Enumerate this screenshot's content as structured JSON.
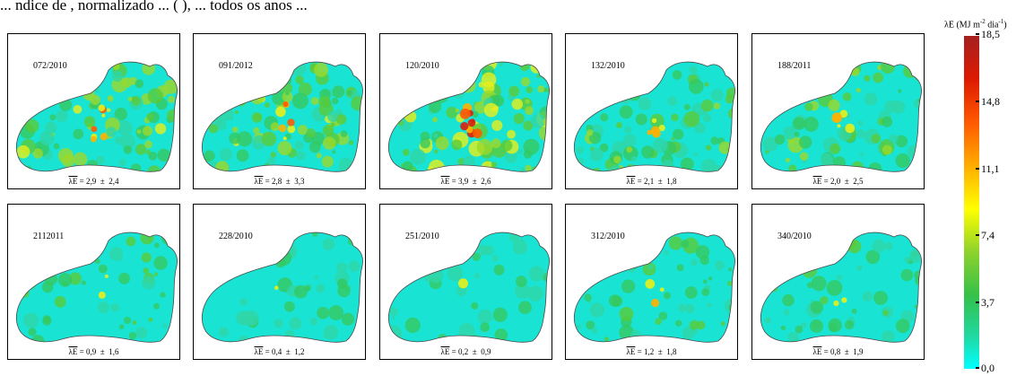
{
  "caption_fragment": "... ndice de  , normalizado ... (  ), ... todos os anos ...",
  "legend": {
    "title_main": "λE (MJ m",
    "sup1": "-2",
    "title_mid": " dia",
    "sup2": "-1",
    "title_end": ")",
    "ticks": [
      "18,5",
      "14,8",
      "11,1",
      "7,4",
      "3,7",
      "0,0"
    ],
    "color_top": "#a52020",
    "color_bottom": "#00ffff"
  },
  "panels": [
    {
      "date": "072/2010",
      "symbol": "λE",
      "mean": "2,9",
      "pm": "±",
      "sd": "2,4"
    },
    {
      "date": "091/2012",
      "symbol": "λE",
      "mean": "2,8",
      "pm": "±",
      "sd": "3,3"
    },
    {
      "date": "120/2010",
      "symbol": "λE",
      "mean": "3,9",
      "pm": "±",
      "sd": "2,6"
    },
    {
      "date": "132/2010",
      "symbol": "λE",
      "mean": "2,1",
      "pm": "±",
      "sd": "1,8"
    },
    {
      "date": "188/2011",
      "symbol": "λE",
      "mean": "2,0",
      "pm": "±",
      "sd": "2,5"
    },
    {
      "date": "2112011",
      "symbol": "λE",
      "mean": "0,9",
      "pm": "±",
      "sd": "1,6"
    },
    {
      "date": "228/2010",
      "symbol": "λE",
      "mean": "0,4",
      "pm": "±",
      "sd": "1,2"
    },
    {
      "date": "251/2010",
      "symbol": "λE",
      "mean": "0,2",
      "pm": "±",
      "sd": "0,9"
    },
    {
      "date": "312/2010",
      "symbol": "λE",
      "mean": "1,2",
      "pm": "±",
      "sd": "1,8"
    },
    {
      "date": "340/2010",
      "symbol": "λE",
      "mean": "0,8",
      "pm": "±",
      "sd": "1,9"
    }
  ]
}
